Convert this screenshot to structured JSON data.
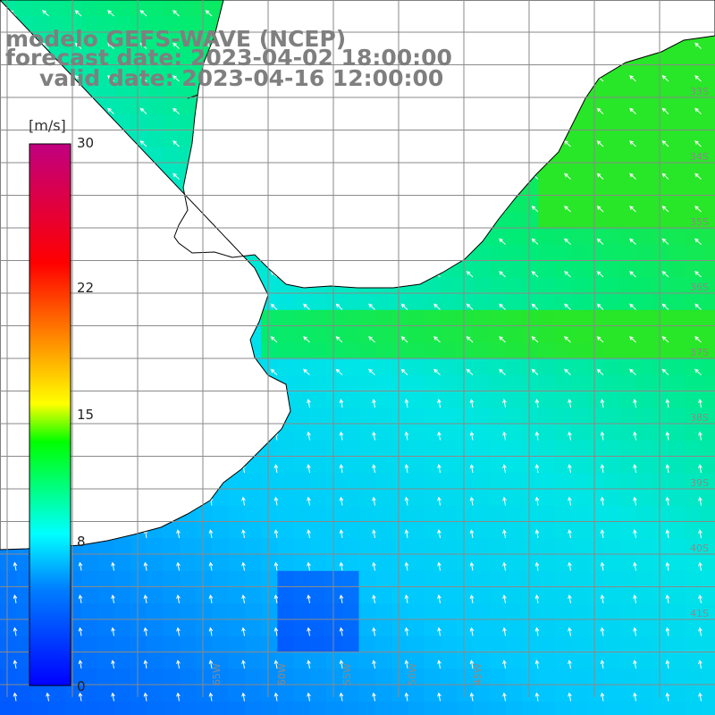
{
  "header": {
    "line1": "modelo GEFS-WAVE (NCEP)",
    "line2": "forecast date: 2023-04-02 18:00:00",
    "line3": "valid date: 2023-04-16 12:00:00"
  },
  "legend": {
    "unit": "[m/s]",
    "min": 0,
    "max": 30,
    "ticks": [
      {
        "value": 30,
        "label": "30"
      },
      {
        "value": 22,
        "label": "22"
      },
      {
        "value": 15,
        "label": "15"
      },
      {
        "value": 8,
        "label": "8"
      },
      {
        "value": 0,
        "label": "0"
      }
    ],
    "colors": [
      "#0000ff",
      "#0080ff",
      "#00ffff",
      "#00ff00",
      "#ffff00",
      "#ff8000",
      "#ff0000",
      "#c00080"
    ]
  },
  "map": {
    "latitude_labels": [
      "33S",
      "34S",
      "35S",
      "36S",
      "37S",
      "38S",
      "39S",
      "40S",
      "41S"
    ],
    "longitude_labels": [
      "65W",
      "60W",
      "55W",
      "50W",
      "45W"
    ],
    "land_color": "#ffffff",
    "grid_color": "#888888",
    "arrow_color": "#ffffff"
  }
}
